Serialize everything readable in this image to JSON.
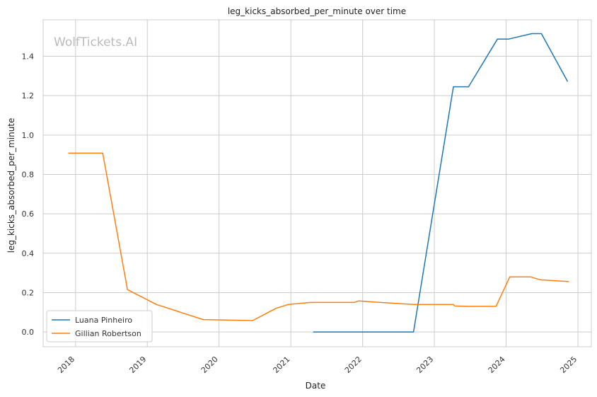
{
  "chart_data": {
    "type": "line",
    "title": "leg_kicks_absorbed_per_minute over time",
    "xlabel": "Date",
    "ylabel": "leg_kicks_absorbed_per_minute",
    "watermark": "WolfTickets.AI",
    "x_ticks": [
      "2018",
      "2019",
      "2020",
      "2021",
      "2022",
      "2023",
      "2024",
      "2025"
    ],
    "y_ticks": [
      "0.0",
      "0.2",
      "0.4",
      "0.6",
      "0.8",
      "1.0",
      "1.2",
      "1.4"
    ],
    "xlim": [
      "2017-07-20",
      "2025-03-10"
    ],
    "ylim": [
      -0.075,
      1.585
    ],
    "grid": true,
    "legend_position": "lower-left",
    "series": [
      {
        "name": "Luana Pinheiro",
        "color": "#1f77b4",
        "points": [
          [
            "2021-04-24",
            0.0
          ],
          [
            "2022-09-17",
            0.0
          ],
          [
            "2023-04-08",
            1.245
          ],
          [
            "2023-06-24",
            1.245
          ],
          [
            "2023-11-18",
            1.487
          ],
          [
            "2024-01-13",
            1.487
          ],
          [
            "2024-05-11",
            1.515
          ],
          [
            "2024-06-29",
            1.515
          ],
          [
            "2024-11-09",
            1.272
          ]
        ]
      },
      {
        "name": "Gillian Robertson",
        "color": "#ff7f0e",
        "points": [
          [
            "2017-11-25",
            0.908
          ],
          [
            "2018-05-19",
            0.908
          ],
          [
            "2018-09-22",
            0.215
          ],
          [
            "2019-02-16",
            0.14
          ],
          [
            "2019-10-12",
            0.063
          ],
          [
            "2020-06-20",
            0.058
          ],
          [
            "2020-10-17",
            0.12
          ],
          [
            "2020-12-19",
            0.14
          ],
          [
            "2021-04-10",
            0.15
          ],
          [
            "2021-11-20",
            0.15
          ],
          [
            "2021-12-11",
            0.158
          ],
          [
            "2022-02-26",
            0.152
          ],
          [
            "2022-09-17",
            0.14
          ],
          [
            "2023-04-08",
            0.14
          ],
          [
            "2023-04-15",
            0.132
          ],
          [
            "2023-06-24",
            0.13
          ],
          [
            "2023-11-11",
            0.13
          ],
          [
            "2024-01-20",
            0.28
          ],
          [
            "2024-05-04",
            0.28
          ],
          [
            "2024-06-22",
            0.265
          ],
          [
            "2024-11-16",
            0.256
          ]
        ]
      }
    ]
  }
}
